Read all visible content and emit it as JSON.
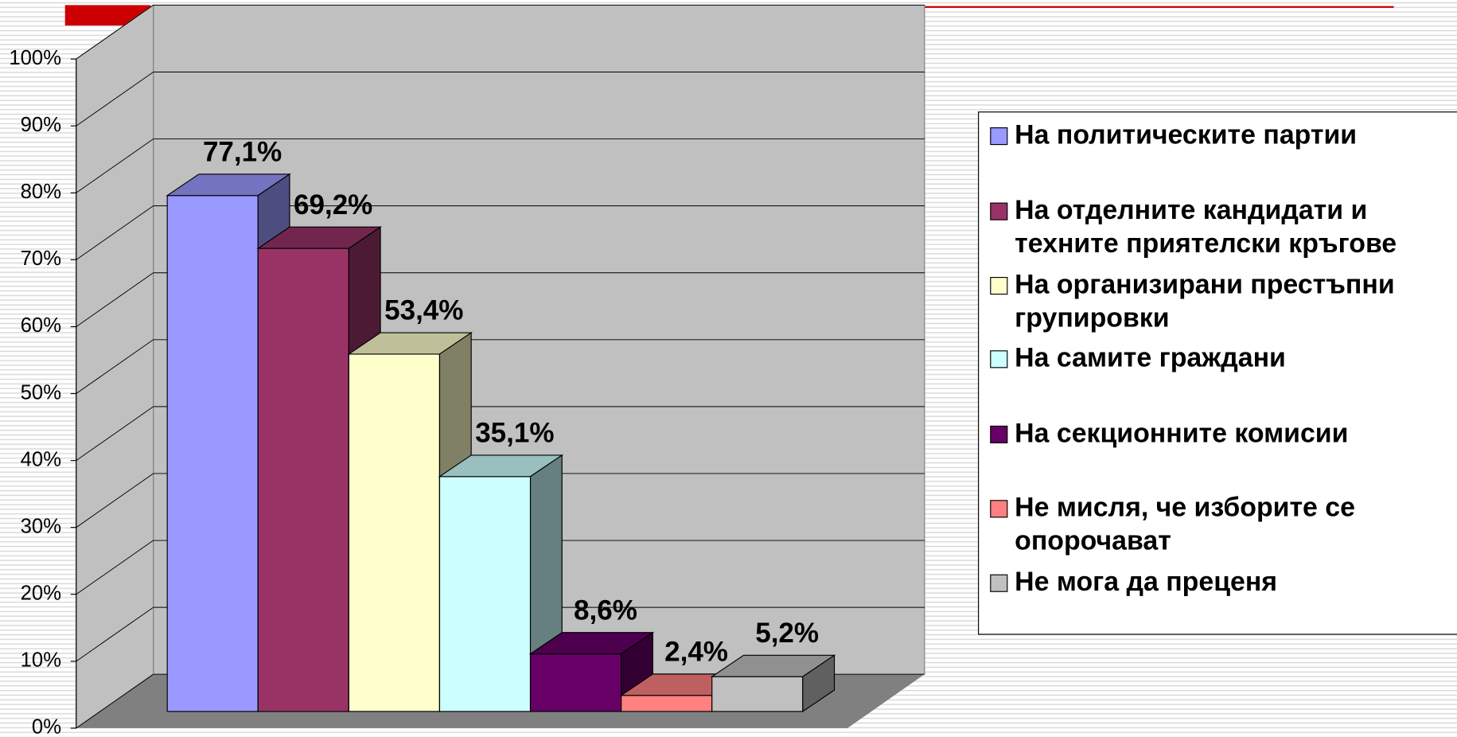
{
  "chart_data": {
    "type": "bar",
    "series": [
      {
        "name": "На политическите партии",
        "color": "#9999ff",
        "values": [
          77.1
        ],
        "value_labels": [
          "77,1%"
        ]
      },
      {
        "name": "На отделните кандидати и техните приятелски кръгове",
        "color": "#993366",
        "values": [
          69.2
        ],
        "value_labels": [
          "69,2%"
        ]
      },
      {
        "name": "На организирани престъпни групировки",
        "color": "#ffffcc",
        "values": [
          53.4
        ],
        "value_labels": [
          "53,4%"
        ]
      },
      {
        "name": "На самите граждани",
        "color": "#ccffff",
        "values": [
          35.1
        ],
        "value_labels": [
          "35,1%"
        ]
      },
      {
        "name": "На секционните комисии",
        "color": "#660066",
        "values": [
          8.6
        ],
        "value_labels": [
          "8,6%"
        ]
      },
      {
        "name": "Не мисля, че изборите се опорочават",
        "color": "#ff8080",
        "values": [
          2.4
        ],
        "value_labels": [
          "2,4%"
        ]
      },
      {
        "name": "Не мога да преценя",
        "color": "#c0c0c0",
        "values": [
          5.2
        ],
        "value_labels": [
          "5,2%"
        ]
      }
    ],
    "ylim": [
      0,
      100
    ],
    "yticks": [
      {
        "value": 0,
        "label": "0%"
      },
      {
        "value": 10,
        "label": "10%"
      },
      {
        "value": 20,
        "label": "20%"
      },
      {
        "value": 30,
        "label": "30%"
      },
      {
        "value": 40,
        "label": "40%"
      },
      {
        "value": 50,
        "label": "50%"
      },
      {
        "value": 60,
        "label": "60%"
      },
      {
        "value": 70,
        "label": "70%"
      },
      {
        "value": 80,
        "label": "80%"
      },
      {
        "value": 90,
        "label": "90%"
      },
      {
        "value": 100,
        "label": "100%"
      }
    ],
    "grid": true,
    "legend": "right"
  }
}
